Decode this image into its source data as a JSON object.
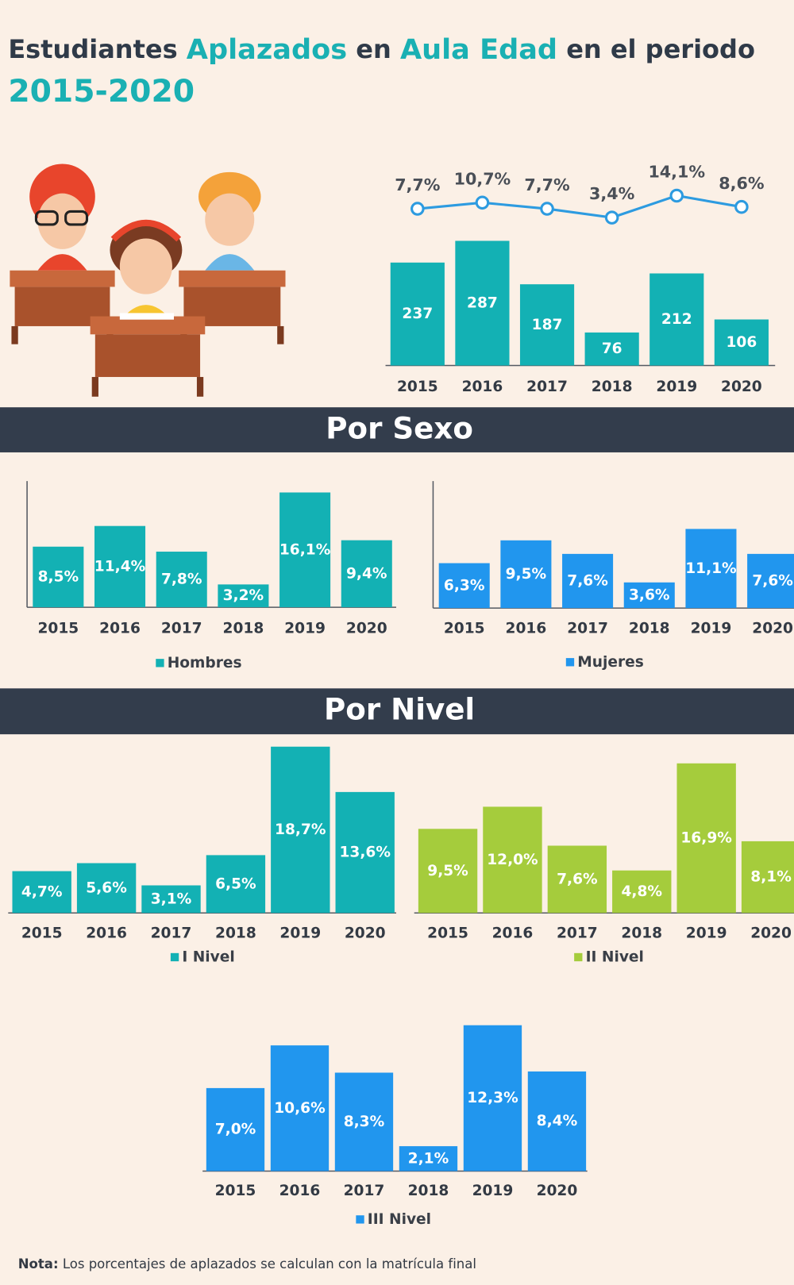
{
  "header": {
    "title_parts": [
      "Estudiantes",
      "Aplazados",
      "en",
      "Aula Edad",
      "en el periodo"
    ],
    "subtitle": "2015-2020"
  },
  "sections": [
    "Por Sexo",
    "Por Nivel"
  ],
  "chart_data": [
    {
      "type": "combo",
      "categories": [
        "2015",
        "2016",
        "2017",
        "2018",
        "2019",
        "2020"
      ],
      "series": [
        {
          "type": "bar",
          "color": "#13b1b4",
          "values": [
            237,
            287,
            187,
            76,
            212,
            106
          ]
        },
        {
          "type": "line",
          "color": "#2d9be0",
          "values": [
            7.7,
            10.7,
            7.7,
            3.4,
            14.1,
            8.6
          ],
          "value_labels": [
            "7,7%",
            "10,7%",
            "7,7%",
            "3,4%",
            "14,1%",
            "8,6%"
          ]
        }
      ]
    },
    {
      "type": "bar",
      "categories": [
        "2015",
        "2016",
        "2017",
        "2018",
        "2019",
        "2020"
      ],
      "series": [
        {
          "name": "Hombres",
          "color": "#13b1b4",
          "values": [
            8.5,
            11.4,
            7.8,
            3.2,
            16.1,
            9.4
          ],
          "value_labels": [
            "8,5%",
            "11,4%",
            "7,8%",
            "3,2%",
            "16,1%",
            "9,4%"
          ]
        }
      ],
      "legend": "bottom"
    },
    {
      "type": "bar",
      "categories": [
        "2015",
        "2016",
        "2017",
        "2018",
        "2019",
        "2020"
      ],
      "series": [
        {
          "name": "Mujeres",
          "color": "#2196ee",
          "values": [
            6.3,
            9.5,
            7.6,
            3.6,
            11.1,
            7.6
          ],
          "value_labels": [
            "6,3%",
            "9,5%",
            "7,6%",
            "3,6%",
            "11,1%",
            "7,6%"
          ]
        }
      ],
      "legend": "bottom"
    },
    {
      "type": "bar",
      "categories": [
        "2015",
        "2016",
        "2017",
        "2018",
        "2019",
        "2020"
      ],
      "series": [
        {
          "name": "I Nivel",
          "color": "#13b1b4",
          "values": [
            4.7,
            5.6,
            3.1,
            6.5,
            18.7,
            13.6
          ],
          "value_labels": [
            "4,7%",
            "5,6%",
            "3,1%",
            "6,5%",
            "18,7%",
            "13,6%"
          ]
        }
      ],
      "legend": "bottom"
    },
    {
      "type": "bar",
      "categories": [
        "2015",
        "2016",
        "2017",
        "2018",
        "2019",
        "2020"
      ],
      "series": [
        {
          "name": "II Nivel",
          "color": "#a5cc3c",
          "values": [
            9.5,
            12.0,
            7.6,
            4.8,
            16.9,
            8.1
          ],
          "value_labels": [
            "9,5%",
            "12,0%",
            "7,6%",
            "4,8%",
            "16,9%",
            "8,1%"
          ]
        }
      ],
      "legend": "bottom"
    },
    {
      "type": "bar",
      "categories": [
        "2015",
        "2016",
        "2017",
        "2018",
        "2019",
        "2020"
      ],
      "series": [
        {
          "name": "III Nivel",
          "color": "#2196ee",
          "values": [
            7.0,
            10.6,
            8.3,
            2.1,
            12.3,
            8.4
          ],
          "value_labels": [
            "7,0%",
            "10,6%",
            "8,3%",
            "2,1%",
            "12,3%",
            "8,4%"
          ]
        }
      ],
      "legend": "bottom"
    }
  ],
  "note": {
    "label": "Nota:",
    "text": "Los porcentajes de aplazados se calculan con la matrícula final"
  }
}
